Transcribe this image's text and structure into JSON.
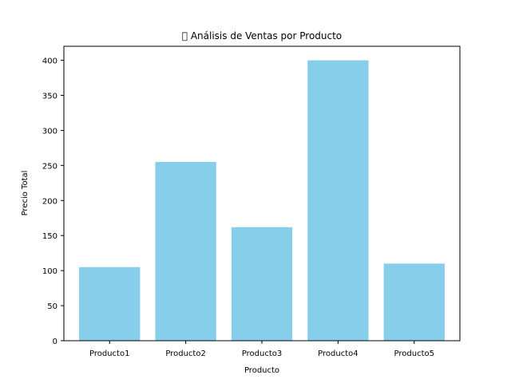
{
  "chart_data": {
    "type": "bar",
    "title": "􀀀 Análisis de Ventas por Producto",
    "xlabel": "Producto",
    "ylabel": "Precio Total",
    "categories": [
      "Producto1",
      "Producto2",
      "Producto3",
      "Producto4",
      "Producto5"
    ],
    "values": [
      105,
      255,
      162,
      400,
      110
    ],
    "ylim": [
      0,
      420
    ],
    "yticks": [
      0,
      50,
      100,
      150,
      200,
      250,
      300,
      350,
      400
    ],
    "bar_color": "#87ceeb",
    "grid": false,
    "legend": "none"
  }
}
